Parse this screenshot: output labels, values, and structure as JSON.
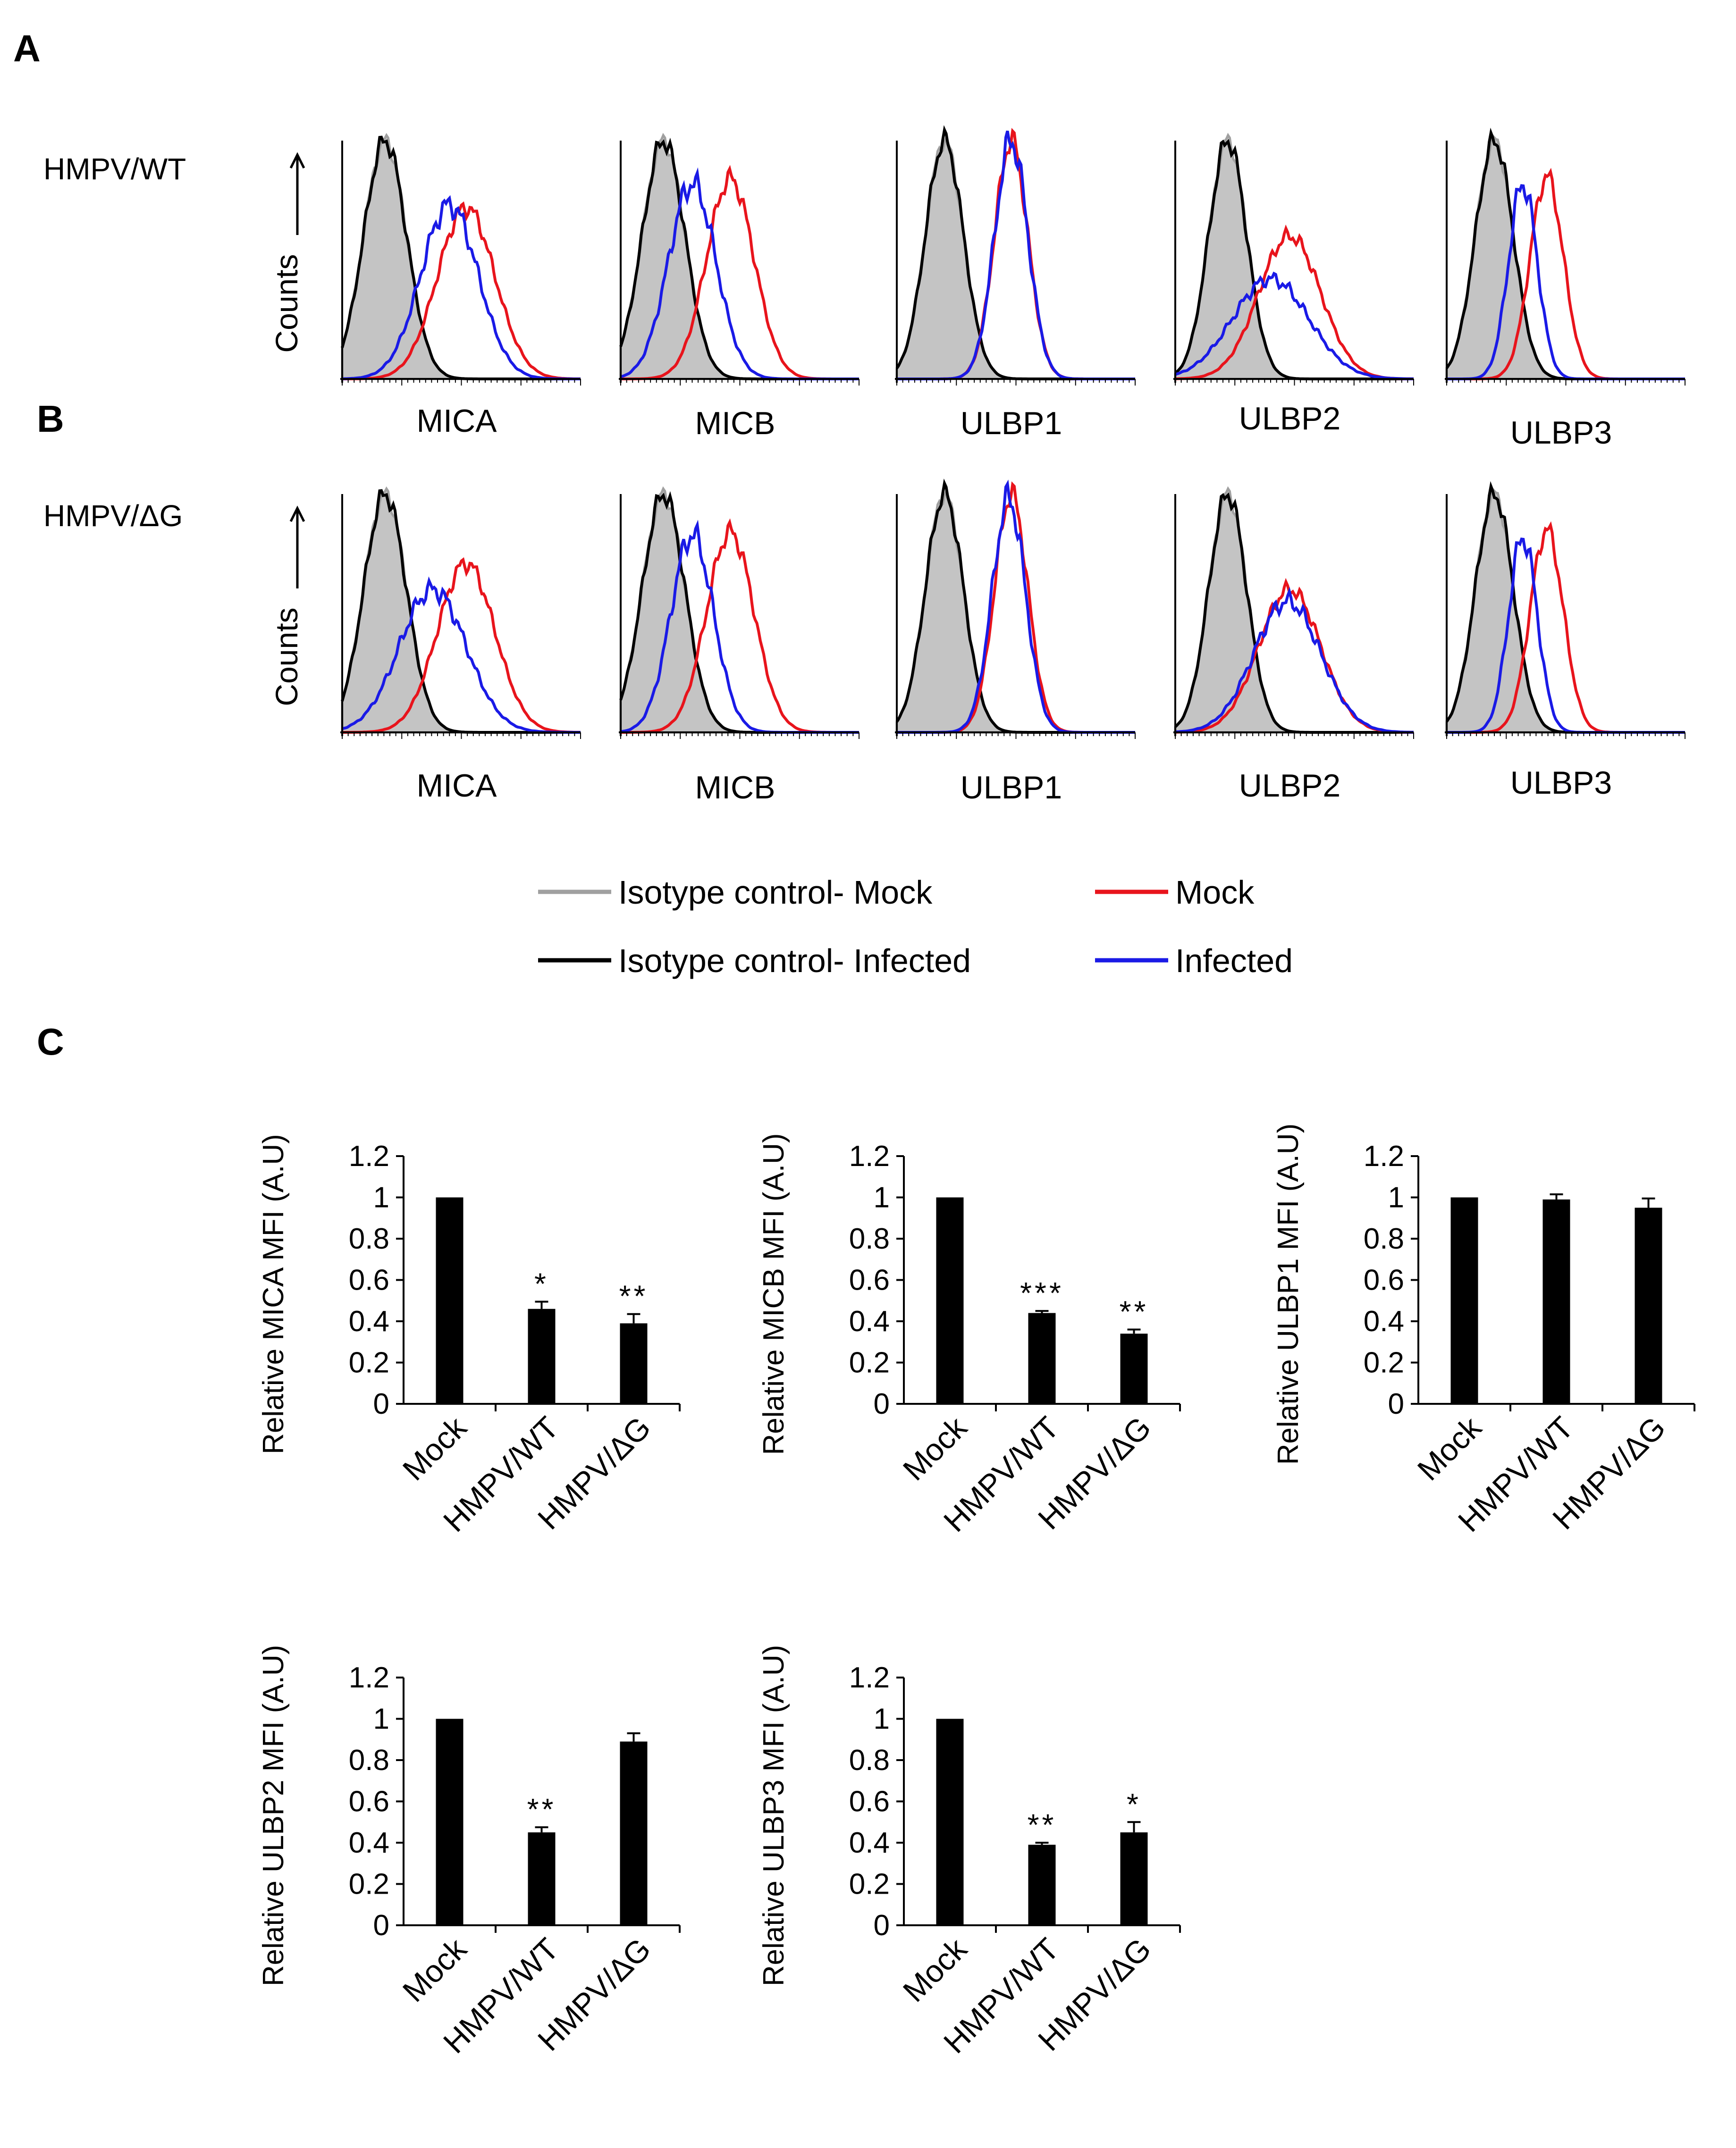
{
  "panels": {
    "a": "A",
    "b": "B",
    "c": "C"
  },
  "histograms": {
    "rows": [
      {
        "key": "wt",
        "label": "HMPV/WT"
      },
      {
        "key": "dg",
        "label": "HMPV/ΔG"
      }
    ],
    "y_axis_label": "Counts",
    "markers": [
      "MICA",
      "MICB",
      "ULBP1",
      "ULBP2",
      "ULBP3"
    ],
    "series_colors": {
      "isotype_mock": "#a0a0a0",
      "isotype_infected": "#000000",
      "mock": "#e8141c",
      "infected": "#1a1ae6",
      "isotype_fill": "#c4c4c4"
    },
    "peaks": {
      "wt": [
        {
          "isotype": [
            0.18,
            0.09
          ],
          "mock": [
            0.52,
            0.12,
            0.72
          ],
          "infected": [
            0.45,
            0.12,
            0.73
          ]
        },
        {
          "isotype": [
            0.18,
            0.09
          ],
          "mock": [
            0.46,
            0.1,
            0.84
          ],
          "infected": [
            0.3,
            0.1,
            0.82
          ]
        },
        {
          "isotype": [
            0.2,
            0.08
          ],
          "mock": [
            0.48,
            0.07,
            1.0
          ],
          "infected": [
            0.48,
            0.07,
            1.0
          ]
        },
        {
          "isotype": [
            0.22,
            0.08
          ],
          "mock": [
            0.48,
            0.13,
            0.6
          ],
          "infected": [
            0.4,
            0.16,
            0.42
          ]
        },
        {
          "isotype": [
            0.2,
            0.08
          ],
          "mock": [
            0.42,
            0.07,
            0.85
          ],
          "infected": [
            0.32,
            0.06,
            0.82
          ]
        }
      ],
      "dg": [
        {
          "isotype": [
            0.18,
            0.09
          ],
          "mock": [
            0.52,
            0.12,
            0.71
          ],
          "infected": [
            0.38,
            0.14,
            0.6
          ]
        },
        {
          "isotype": [
            0.18,
            0.09
          ],
          "mock": [
            0.46,
            0.1,
            0.84
          ],
          "infected": [
            0.3,
            0.09,
            0.83
          ]
        },
        {
          "isotype": [
            0.2,
            0.08
          ],
          "mock": [
            0.48,
            0.07,
            1.0
          ],
          "infected": [
            0.47,
            0.07,
            0.98
          ]
        },
        {
          "isotype": [
            0.22,
            0.08
          ],
          "mock": [
            0.48,
            0.13,
            0.6
          ],
          "infected": [
            0.47,
            0.14,
            0.55
          ]
        },
        {
          "isotype": [
            0.2,
            0.08
          ],
          "mock": [
            0.42,
            0.07,
            0.85
          ],
          "infected": [
            0.32,
            0.06,
            0.82
          ]
        }
      ]
    }
  },
  "legend": {
    "isotype_mock": "Isotype control- Mock",
    "isotype_infected": "Isotype control- Infected",
    "mock": "Mock",
    "infected": "Infected"
  },
  "chart_data": [
    {
      "type": "bar",
      "title": "",
      "xlabel": "",
      "ylabel": "Relative MICA MFI (A.U)",
      "ylim": [
        0,
        1.2
      ],
      "yticks": [
        "0",
        "0.2",
        "0.4",
        "0.6",
        "0.8",
        "1",
        "1.2"
      ],
      "categories": [
        "Mock",
        "HMPV/WT",
        "HMPV/ΔG"
      ],
      "values": [
        1.0,
        0.46,
        0.39
      ],
      "errors": [
        0,
        0.035,
        0.045
      ],
      "significance": [
        "",
        "*",
        "**"
      ]
    },
    {
      "type": "bar",
      "title": "",
      "xlabel": "",
      "ylabel": "Relative MICB MFI (A.U)",
      "ylim": [
        0,
        1.2
      ],
      "yticks": [
        "0",
        "0.2",
        "0.4",
        "0.6",
        "0.8",
        "1",
        "1.2"
      ],
      "categories": [
        "Mock",
        "HMPV/WT",
        "HMPV/ΔG"
      ],
      "values": [
        1.0,
        0.44,
        0.34
      ],
      "errors": [
        0,
        0.01,
        0.02
      ],
      "significance": [
        "",
        "***",
        "**"
      ]
    },
    {
      "type": "bar",
      "title": "",
      "xlabel": "",
      "ylabel": "Relative ULBP1 MFI (A.U)",
      "ylim": [
        0,
        1.2
      ],
      "yticks": [
        "0",
        "0.2",
        "0.4",
        "0.6",
        "0.8",
        "1",
        "1.2"
      ],
      "categories": [
        "Mock",
        "HMPV/WT",
        "HMPV/ΔG"
      ],
      "values": [
        1.0,
        0.99,
        0.95
      ],
      "errors": [
        0,
        0.025,
        0.045
      ],
      "significance": [
        "",
        "",
        ""
      ]
    },
    {
      "type": "bar",
      "title": "",
      "xlabel": "",
      "ylabel": "Relative ULBP2 MFI (A.U)",
      "ylim": [
        0,
        1.2
      ],
      "yticks": [
        "0",
        "0.2",
        "0.4",
        "0.6",
        "0.8",
        "1",
        "1.2"
      ],
      "categories": [
        "Mock",
        "HMPV/WT",
        "HMPV/ΔG"
      ],
      "values": [
        1.0,
        0.45,
        0.89
      ],
      "errors": [
        0,
        0.025,
        0.04
      ],
      "significance": [
        "",
        "**",
        ""
      ]
    },
    {
      "type": "bar",
      "title": "",
      "xlabel": "",
      "ylabel": "Relative ULBP3 MFI (A.U)",
      "ylim": [
        0,
        1.2
      ],
      "yticks": [
        "0",
        "0.2",
        "0.4",
        "0.6",
        "0.8",
        "1",
        "1.2"
      ],
      "categories": [
        "Mock",
        "HMPV/WT",
        "HMPV/ΔG"
      ],
      "values": [
        1.0,
        0.39,
        0.45
      ],
      "errors": [
        0,
        0.01,
        0.05
      ],
      "significance": [
        "",
        "**",
        "*"
      ]
    }
  ]
}
